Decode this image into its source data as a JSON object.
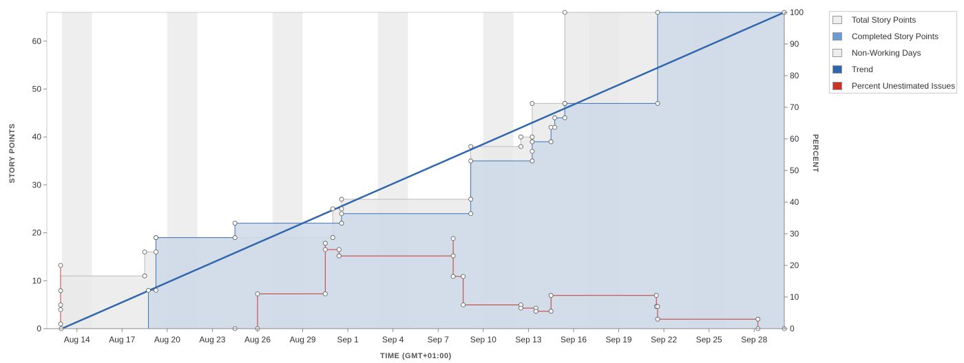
{
  "chart_data": {
    "type": "area",
    "xlabel": "TIME (GMT+01:00)",
    "ylabel": "STORY POINTS",
    "y2label": "PERCENT",
    "ylim": [
      0,
      66
    ],
    "y2lim": [
      0,
      100
    ],
    "yticks": [
      0,
      10,
      20,
      30,
      40,
      50,
      60
    ],
    "y2ticks": [
      0,
      10,
      20,
      30,
      40,
      50,
      60,
      70,
      80,
      90,
      100
    ],
    "xlim": [
      "2018-08-12T00:00",
      "2018-09-30T00:00"
    ],
    "xticks": [
      {
        "date": "2018-08-14",
        "label": "Aug 14"
      },
      {
        "date": "2018-08-17",
        "label": "Aug 17"
      },
      {
        "date": "2018-08-20",
        "label": "Aug 20"
      },
      {
        "date": "2018-08-23",
        "label": "Aug 23"
      },
      {
        "date": "2018-08-26",
        "label": "Aug 26"
      },
      {
        "date": "2018-08-29",
        "label": "Aug 29"
      },
      {
        "date": "2018-09-01",
        "label": "Sep 1"
      },
      {
        "date": "2018-09-04",
        "label": "Sep 4"
      },
      {
        "date": "2018-09-07",
        "label": "Sep 7"
      },
      {
        "date": "2018-09-10",
        "label": "Sep 10"
      },
      {
        "date": "2018-09-13",
        "label": "Sep 13"
      },
      {
        "date": "2018-09-16",
        "label": "Sep 16"
      },
      {
        "date": "2018-09-19",
        "label": "Sep 19"
      },
      {
        "date": "2018-09-22",
        "label": "Sep 22"
      },
      {
        "date": "2018-09-25",
        "label": "Sep 25"
      },
      {
        "date": "2018-09-28",
        "label": "Sep 28"
      }
    ],
    "non_working_days": [
      [
        "2018-08-13",
        "2018-08-15"
      ],
      [
        "2018-08-20",
        "2018-08-22"
      ],
      [
        "2018-08-27",
        "2018-08-29"
      ],
      [
        "2018-09-03",
        "2018-09-05"
      ],
      [
        "2018-09-10",
        "2018-09-12"
      ],
      [
        "2018-09-17",
        "2018-09-19"
      ],
      [
        "2018-09-24",
        "2018-09-26"
      ]
    ],
    "series": [
      {
        "name": "Total Story Points",
        "axis": "left",
        "color": "#bbbbbb",
        "fill": "#e8e8e8",
        "step": true,
        "points": [
          [
            "2018-08-12T23:00",
            11
          ],
          [
            "2018-08-18T12:00",
            11
          ],
          [
            "2018-08-18T12:00",
            16
          ],
          [
            "2018-08-19T06:00",
            16
          ],
          [
            "2018-08-19T06:00",
            19
          ],
          [
            "2018-08-31T00:00",
            19
          ],
          [
            "2018-08-31T00:00",
            25
          ],
          [
            "2018-08-31T14:00",
            25
          ],
          [
            "2018-08-31T14:00",
            27
          ],
          [
            "2018-09-09T04:00",
            27
          ],
          [
            "2018-09-09T04:00",
            38
          ],
          [
            "2018-09-12T12:00",
            38
          ],
          [
            "2018-09-12T12:00",
            40
          ],
          [
            "2018-09-13T06:00",
            40
          ],
          [
            "2018-09-13T06:00",
            47
          ],
          [
            "2018-09-15T10:00",
            47
          ],
          [
            "2018-09-15T10:00",
            66
          ],
          [
            "2018-09-29T23:59",
            66
          ]
        ]
      },
      {
        "name": "Completed Story Points",
        "axis": "left",
        "color": "#3b73b9",
        "fill": "#cdd9e7",
        "step": true,
        "points": [
          [
            "2018-08-18T18:00",
            0
          ],
          [
            "2018-08-18T18:00",
            8
          ],
          [
            "2018-08-19T06:00",
            8
          ],
          [
            "2018-08-19T06:00",
            19
          ],
          [
            "2018-08-24T12:00",
            19
          ],
          [
            "2018-08-24T12:00",
            22
          ],
          [
            "2018-08-31T14:00",
            22
          ],
          [
            "2018-08-31T14:00",
            24
          ],
          [
            "2018-09-09T04:00",
            24
          ],
          [
            "2018-09-09T04:00",
            35
          ],
          [
            "2018-09-13T06:00",
            35
          ],
          [
            "2018-09-13T06:00",
            37
          ],
          [
            "2018-09-13T06:00",
            39
          ],
          [
            "2018-09-14T12:00",
            39
          ],
          [
            "2018-09-14T12:00",
            42
          ],
          [
            "2018-09-14T18:00",
            42
          ],
          [
            "2018-09-14T18:00",
            44
          ],
          [
            "2018-09-15T10:00",
            44
          ],
          [
            "2018-09-15T10:00",
            47
          ],
          [
            "2018-09-21T14:00",
            47
          ],
          [
            "2018-09-21T14:00",
            66
          ],
          [
            "2018-09-29T23:59",
            66
          ]
        ]
      },
      {
        "name": "Trend",
        "axis": "left",
        "color": "#2f66ad",
        "points": [
          [
            "2018-08-13T00:00",
            0
          ],
          [
            "2018-09-29T23:59",
            66
          ]
        ]
      },
      {
        "name": "Percent Unestimated Issues",
        "axis": "right",
        "color": "#c8342b",
        "step": true,
        "points": [
          [
            "2018-08-12T22:00",
            20
          ],
          [
            "2018-08-12T22:00",
            12
          ],
          [
            "2018-08-12T22:00",
            7.5
          ],
          [
            "2018-08-12T22:00",
            6
          ],
          [
            "2018-08-12T22:00",
            1.5
          ],
          [
            "2018-08-12T23:00",
            0
          ],
          [
            "2018-08-24T12:00",
            0
          ],
          [
            "2018-08-26T00:00",
            0
          ],
          [
            "2018-08-26T00:00",
            11
          ],
          [
            "2018-08-30T12:00",
            11
          ],
          [
            "2018-08-30T12:00",
            27
          ],
          [
            "2018-08-30T12:00",
            25
          ],
          [
            "2018-08-31T10:00",
            25
          ],
          [
            "2018-08-31T10:00",
            23
          ],
          [
            "2018-09-08T00:00",
            23
          ],
          [
            "2018-09-08T00:00",
            28.5
          ],
          [
            "2018-09-08T00:00",
            16.5
          ],
          [
            "2018-09-08T16:00",
            16.5
          ],
          [
            "2018-09-08T16:00",
            7.5
          ],
          [
            "2018-09-12T12:00",
            7.5
          ],
          [
            "2018-09-12T12:00",
            6.5
          ],
          [
            "2018-09-13T12:00",
            6.5
          ],
          [
            "2018-09-13T12:00",
            5.5
          ],
          [
            "2018-09-14T12:00",
            5.5
          ],
          [
            "2018-09-14T12:00",
            10.5
          ],
          [
            "2018-09-21T12:00",
            10.5
          ],
          [
            "2018-09-21T12:00",
            7
          ],
          [
            "2018-09-21T14:00",
            7
          ],
          [
            "2018-09-21T14:00",
            3
          ],
          [
            "2018-09-28T06:00",
            3
          ],
          [
            "2018-09-28T06:00",
            0
          ],
          [
            "2018-09-29T23:59",
            0
          ]
        ]
      }
    ]
  },
  "legend": {
    "items": [
      {
        "label": "Total Story Points",
        "color": "#eeeeee"
      },
      {
        "label": "Completed Story Points",
        "color": "#6a9bd4"
      },
      {
        "label": "Non-Working Days",
        "color": "#eeeeee"
      },
      {
        "label": "Trend",
        "color": "#2f66ad"
      },
      {
        "label": "Percent Unestimated Issues",
        "color": "#c8342b"
      }
    ]
  }
}
